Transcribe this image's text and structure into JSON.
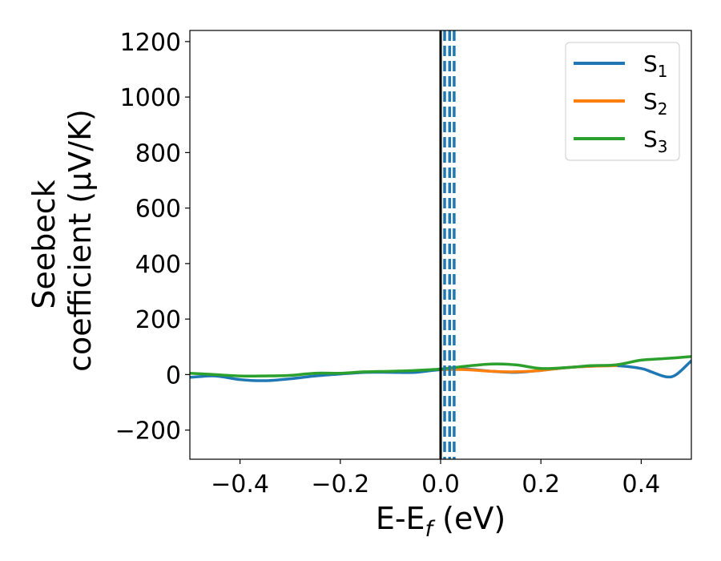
{
  "chart_data": {
    "type": "line",
    "title": "",
    "xlabel_main": "E-E",
    "xlabel_sub": "f",
    "xlabel_unit": " (eV)",
    "ylabel_line1": "Seebeck",
    "ylabel_line2": "coefficient  (μV/K)",
    "xlim": [
      -0.5,
      0.5
    ],
    "ylim": [
      -305,
      1240
    ],
    "xticks": [
      -0.4,
      -0.2,
      0.0,
      0.2,
      0.4
    ],
    "xtick_labels": [
      "−0.4",
      "−0.2",
      "0.0",
      "0.2",
      "0.4"
    ],
    "yticks": [
      -200,
      0,
      200,
      400,
      600,
      800,
      1000,
      1200
    ],
    "ytick_labels": [
      "−200",
      "0",
      "200",
      "400",
      "600",
      "800",
      "1000",
      "1200"
    ],
    "grid": false,
    "legend_position": "top-right",
    "reference_lines": {
      "solid_black_x": 0.0,
      "dashed_blue_x": [
        0.008,
        0.018,
        0.027
      ]
    },
    "series": [
      {
        "name": "S",
        "subscript": "1",
        "color": "#1f77b4",
        "x": [
          -0.5,
          -0.45,
          -0.4,
          -0.35,
          -0.3,
          -0.25,
          -0.2,
          -0.15,
          -0.1,
          -0.05,
          0.0,
          0.05,
          0.1,
          0.15,
          0.2,
          0.25,
          0.3,
          0.35,
          0.4,
          0.42,
          0.45,
          0.47,
          0.5
        ],
        "y": [
          -10,
          -5,
          -18,
          -22,
          -15,
          -5,
          2,
          8,
          8,
          8,
          18,
          20,
          12,
          8,
          15,
          25,
          30,
          32,
          22,
          10,
          -8,
          0,
          50
        ]
      },
      {
        "name": "S",
        "subscript": "2",
        "color": "#ff7f0e",
        "x": [
          0.0,
          0.05,
          0.1,
          0.15,
          0.2,
          0.25,
          0.3,
          0.35
        ],
        "y": [
          18,
          18,
          12,
          10,
          15,
          25,
          30,
          32
        ]
      },
      {
        "name": "S",
        "subscript": "3",
        "color": "#2ca02c",
        "x": [
          -0.5,
          -0.45,
          -0.4,
          -0.35,
          -0.3,
          -0.25,
          -0.2,
          -0.15,
          -0.1,
          -0.05,
          0.0,
          0.05,
          0.1,
          0.15,
          0.2,
          0.25,
          0.3,
          0.35,
          0.4,
          0.45,
          0.5
        ],
        "y": [
          5,
          0,
          -5,
          -5,
          -3,
          5,
          5,
          10,
          12,
          15,
          20,
          30,
          38,
          35,
          22,
          25,
          32,
          35,
          52,
          58,
          65
        ]
      }
    ]
  }
}
